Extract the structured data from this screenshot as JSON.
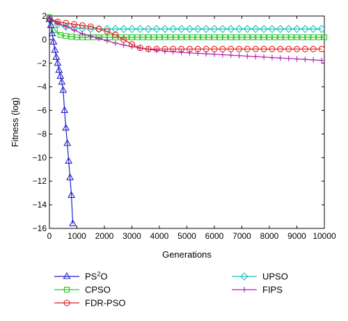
{
  "chart_data": {
    "type": "line",
    "xlabel": "Generations",
    "ylabel": "Fitness (log)",
    "xlim": [
      0,
      10000
    ],
    "ylim": [
      -16,
      2
    ],
    "xticks": [
      0,
      1000,
      2000,
      3000,
      4000,
      5000,
      6000,
      7000,
      8000,
      9000,
      10000
    ],
    "yticks": [
      2,
      0,
      -2,
      -4,
      -6,
      -8,
      -10,
      -12,
      -14,
      -16
    ],
    "grid": false,
    "legend_position": "bottom",
    "series": [
      {
        "name": "PS²O",
        "name_base": "PS",
        "name_sup": "2",
        "name_tail": "O",
        "color": "#1f1fc8",
        "marker": "triangle",
        "x": [
          0,
          50,
          100,
          150,
          200,
          250,
          300,
          350,
          400,
          450,
          500,
          550,
          600,
          650,
          700,
          750,
          800
        ],
        "y": [
          1.7,
          1.2,
          0.5,
          -0.2,
          -0.9,
          -1.5,
          -2.0,
          -2.6,
          -3.1,
          -3.6,
          -4.3,
          -6.0,
          -7.5,
          -8.8,
          -10.3,
          -11.7,
          -13.2
        ],
        "extra_x": [
          800,
          850
        ],
        "extra_y": [
          -13.2,
          -15.6
        ]
      },
      {
        "name": "CPSO",
        "color": "#22c922",
        "marker": "square",
        "x": [
          0,
          200,
          400,
          600,
          800,
          1000,
          1200,
          1400,
          1600,
          1800,
          2000,
          2200,
          2400,
          2600,
          2800,
          3000,
          3200,
          3400,
          3600,
          3800,
          4000,
          4200,
          4400,
          4600,
          4800,
          5000,
          5200,
          5400,
          5600,
          5800,
          6000,
          6200,
          6400,
          6600,
          6800,
          7000,
          7200,
          7400,
          7600,
          7800,
          8000,
          8200,
          8400,
          8600,
          8800,
          9000,
          9200,
          9400,
          9600,
          9800,
          10000
        ],
        "y": [
          1.9,
          0.8,
          0.4,
          0.3,
          0.25,
          0.2,
          0.2,
          0.2,
          0.2,
          0.2,
          0.2,
          0.2,
          0.2,
          0.2,
          0.2,
          0.2,
          0.2,
          0.2,
          0.2,
          0.2,
          0.2,
          0.2,
          0.2,
          0.2,
          0.2,
          0.2,
          0.2,
          0.2,
          0.2,
          0.2,
          0.2,
          0.2,
          0.2,
          0.2,
          0.2,
          0.2,
          0.2,
          0.2,
          0.2,
          0.2,
          0.2,
          0.2,
          0.2,
          0.2,
          0.2,
          0.2,
          0.2,
          0.2,
          0.2,
          0.2,
          0.2
        ]
      },
      {
        "name": "FDR-PSO",
        "color": "#e01c1c",
        "marker": "circle",
        "x": [
          0,
          300,
          600,
          900,
          1200,
          1500,
          1800,
          2100,
          2400,
          2700,
          3000,
          3300,
          3600,
          3900,
          4200,
          4500,
          4800,
          5100,
          5400,
          5700,
          6000,
          6300,
          6600,
          6900,
          7200,
          7500,
          7800,
          8100,
          8400,
          8700,
          9000,
          9300,
          9600,
          9900
        ],
        "y": [
          1.8,
          1.5,
          1.4,
          1.3,
          1.2,
          1.1,
          0.9,
          0.7,
          0.4,
          0.0,
          -0.4,
          -0.7,
          -0.8,
          -0.8,
          -0.8,
          -0.8,
          -0.8,
          -0.8,
          -0.8,
          -0.8,
          -0.8,
          -0.8,
          -0.8,
          -0.8,
          -0.8,
          -0.8,
          -0.8,
          -0.8,
          -0.8,
          -0.8,
          -0.8,
          -0.8,
          -0.8,
          -0.8
        ]
      },
      {
        "name": "UPSO",
        "color": "#1fbfbf",
        "marker": "diamond",
        "x": [
          0,
          300,
          600,
          900,
          1200,
          1500,
          1800,
          2100,
          2400,
          2700,
          3000,
          3300,
          3600,
          3900,
          4200,
          4500,
          4800,
          5100,
          5400,
          5700,
          6000,
          6300,
          6600,
          6900,
          7200,
          7500,
          7800,
          8100,
          8400,
          8700,
          9000,
          9300,
          9600,
          9900
        ],
        "y": [
          1.8,
          1.3,
          1.1,
          1.0,
          0.95,
          0.9,
          0.9,
          0.9,
          0.9,
          0.9,
          0.9,
          0.9,
          0.9,
          0.9,
          0.9,
          0.9,
          0.9,
          0.9,
          0.9,
          0.9,
          0.9,
          0.9,
          0.9,
          0.9,
          0.9,
          0.9,
          0.9,
          0.9,
          0.9,
          0.9,
          0.9,
          0.9,
          0.9,
          0.9
        ]
      },
      {
        "name": "FIPS",
        "color": "#b21fb2",
        "marker": "plus",
        "x": [
          0,
          300,
          600,
          900,
          1200,
          1500,
          1800,
          2100,
          2400,
          2700,
          3000,
          3300,
          3600,
          3900,
          4200,
          4500,
          4800,
          5100,
          5400,
          5700,
          6000,
          6300,
          6600,
          6900,
          7200,
          7500,
          7800,
          8100,
          8400,
          8700,
          9000,
          9300,
          9600,
          9900
        ],
        "y": [
          1.8,
          1.4,
          1.1,
          0.8,
          0.5,
          0.3,
          0.1,
          -0.1,
          -0.3,
          -0.45,
          -0.6,
          -0.72,
          -0.82,
          -0.9,
          -0.97,
          -1.03,
          -1.08,
          -1.12,
          -1.16,
          -1.2,
          -1.24,
          -1.28,
          -1.32,
          -1.36,
          -1.4,
          -1.44,
          -1.48,
          -1.52,
          -1.56,
          -1.6,
          -1.64,
          -1.68,
          -1.72,
          -1.76
        ]
      }
    ]
  }
}
